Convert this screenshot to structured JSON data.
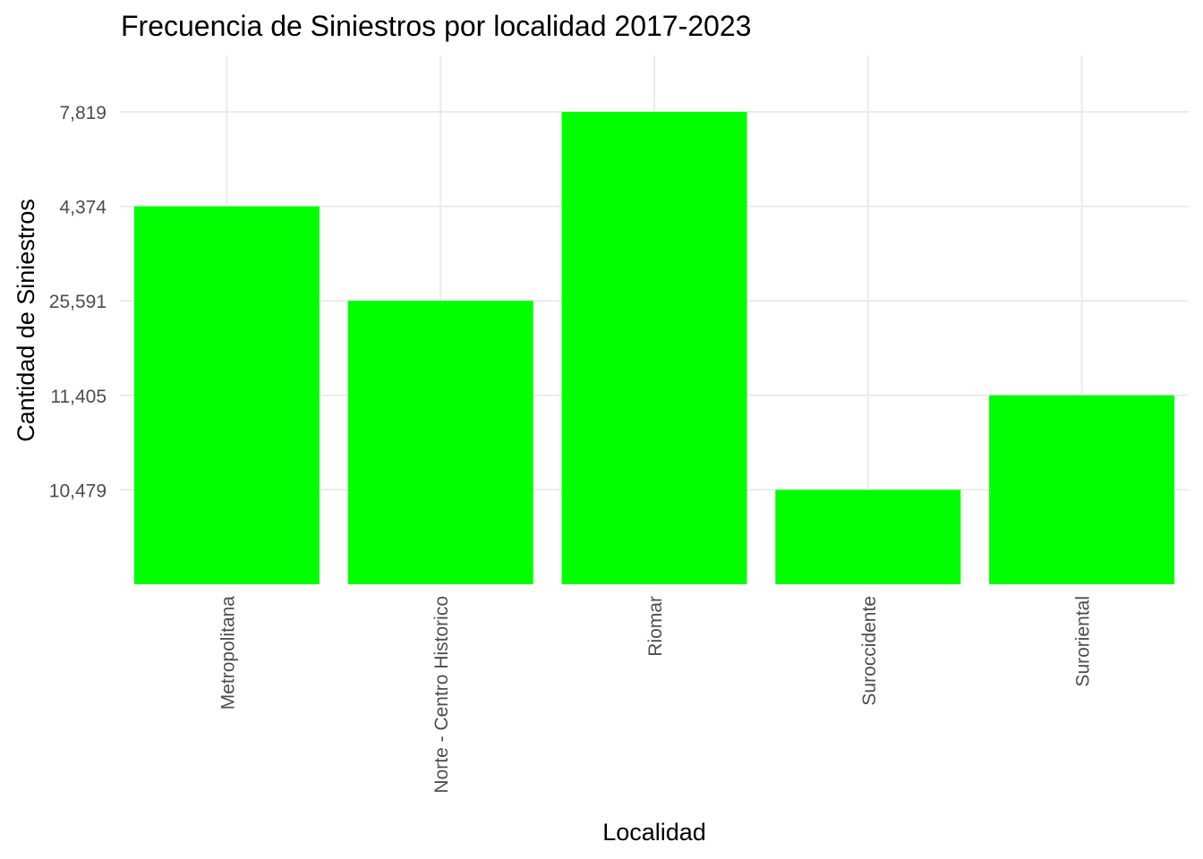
{
  "chart_data": {
    "type": "bar",
    "title": "Frecuencia de Siniestros por localidad 2017-2023",
    "xlabel": "Localidad",
    "ylabel": "Cantidad de Siniestros",
    "categories": [
      "Metropolitana",
      "Norte - Centro Historico",
      "Riomar",
      "Suroccidente",
      "Suroriental"
    ],
    "values": [
      "4,374",
      "25,591",
      "7,819",
      "10,479",
      "11,405"
    ],
    "y_axis_type": "discrete",
    "y_tick_labels": [
      "10,479",
      "11,405",
      "25,591",
      "4,374",
      "7,819"
    ],
    "bar_color": "#00ff00",
    "grid": true,
    "legend": "none"
  }
}
